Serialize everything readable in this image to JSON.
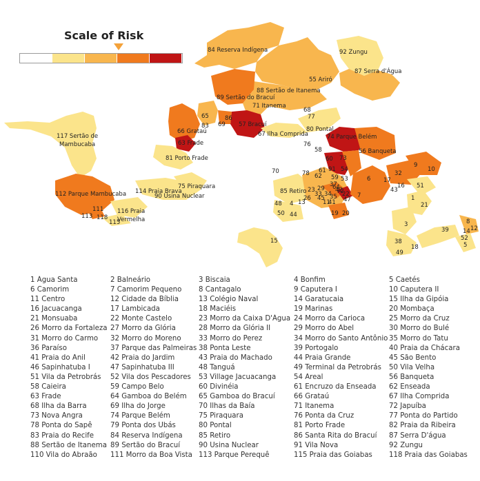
{
  "scale": {
    "title": "Scale of Risk",
    "colors": [
      "#ffffff",
      "#fbe48b",
      "#f8b64e",
      "#f07a1e",
      "#c01515"
    ],
    "selected_level": 3
  },
  "legend": [
    "1 Água Santa",
    "2 Balneário",
    "3 Biscaia",
    "4 Bonfim",
    "5 Caetés",
    "6 Camorim",
    "7 Camorim Pequeno",
    "8 Cantagalo",
    "9 Caputera I",
    "10 Caputera II",
    "11 Centro",
    "12 Cidade da Bíblia",
    "13 Colégio Naval",
    "14 Garatucaia",
    "15 Ilha da Gipóia",
    "16 Jacuacanga",
    "17 Lambicada",
    "18 Maciéis",
    "19 Marinas",
    "20 Mombaça",
    "21 Monsuaba",
    "22 Monte Castelo",
    "23 Morro da Caixa D'Água",
    "24 Morro da Carioca",
    "25 Morro da Cruz",
    "26 Morro da Fortaleza",
    "27 Morro da Glória",
    "28 Morro da Glória II",
    "29 Morro do Abel",
    "30 Morro do Bulé",
    "31 Morro do Carmo",
    "32 Morro do Moreno",
    "33 Morro do Perez",
    "34 Morro do Santo Antônio",
    "35 Morro do Tatu",
    "36 Paraíso",
    "37 Parque das Palmeiras",
    "38 Ponta Leste",
    "39 Portogalo",
    "40 Praia da Chácara",
    "41 Praia do Anil",
    "42 Praia do Jardim",
    "43 Praia do Machado",
    "44 Praia Grande",
    "45 São Bento",
    "46 Sapinhatuba I",
    "47 Sapinhatuba III",
    "48 Tanguá",
    "49 Terminal da Petrobrás",
    "50 Vila Velha",
    "51 Vila da Petrobrás",
    "52 Vila dos Pescadores",
    "53 Village Jacuacanga",
    "54 Areal",
    "56 Banqueta",
    "58 Caieira",
    "59 Campo Belo",
    "60 Divinéia",
    "61 Encruzo da Enseada",
    "62 Enseada",
    "63 Frade",
    "64 Gamboa do Belém",
    "65 Gamboa do Bracuí",
    "66 Grataú",
    "67 Ilha Comprida",
    "68 Ilha da Barra",
    "69 Ilha do Jorge",
    "70 Ilhas da Baía",
    "71 Itanema",
    "72 Japuíba",
    "73 Nova Angra",
    "74 Parque Belém",
    "75 Piraquara",
    "76 Ponta da Cruz",
    "77 Ponta do Partido",
    "78 Ponta do Sapê",
    "79 Ponta dos Ubás",
    "80 Pontal",
    "81 Porto Frade",
    "82 Praia da Ribeira",
    "83 Praia do Recife",
    "84 Reserva Indígena",
    "85 Retiro",
    "86 Santa Rita do Bracuí",
    "87 Serra D'água",
    "88 Sertão de Itanema",
    "89 Sertão do Bracuí",
    "90 Usina Nuclear",
    "91 Vila Nova",
    "92 Zungu",
    "110 Vila do Abraão",
    "111 Morro da Boa Vista",
    "113 Parque Perequê",
    "115 Praia das Goiabas",
    "118 Praia das Goiabas"
  ],
  "map_labels": [
    "84 Reserva Indígena",
    "92 Zungu",
    "55 Ariró",
    "87 Serra d'Água",
    "88 Sertão de Itanema",
    "89 Sertão do Bracuí",
    "71 Itanema",
    "57 Bracuí",
    "65",
    "86",
    "83",
    "69",
    "66 Grataú",
    "63 Frade",
    "67 Ilha Comprida",
    "68",
    "77",
    "80 Pontal",
    "76",
    "58",
    "74 Parque Belém",
    "73",
    "56 Banqueta",
    "60",
    "91",
    "54",
    "117 Sertão de",
    "Mambucaba",
    "81 Porto Frade",
    "70",
    "78",
    "61",
    "62",
    "59",
    "53",
    "37",
    "85 Retiro",
    "23",
    "29",
    "34",
    "33",
    "22",
    "26",
    "45",
    "11",
    "41",
    "35",
    "42",
    "47",
    "64",
    "72",
    "19",
    "20",
    "6",
    "7",
    "17",
    "43",
    "32",
    "16",
    "9",
    "10",
    "51",
    "1",
    "21",
    "48",
    "4",
    "13",
    "50",
    "44",
    "112 Parque Mambucaba",
    "111",
    "113",
    "118",
    "115",
    "116 Praia",
    "Vermelha",
    "114 Praia Brava",
    "90 Usina Nuclear",
    "75 Piraquara",
    "15",
    "3",
    "38",
    "49",
    "18",
    "39",
    "14",
    "12",
    "8",
    "52",
    "5"
  ]
}
